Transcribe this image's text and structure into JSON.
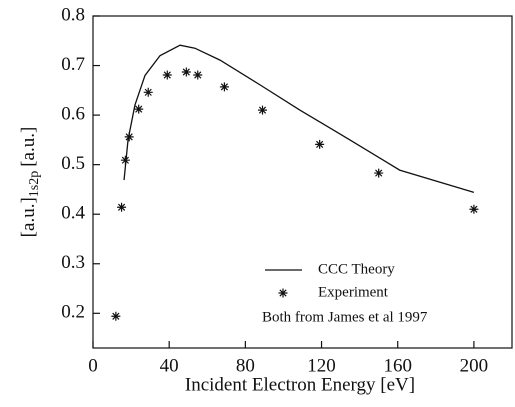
{
  "chart_data": {
    "type": "line",
    "xlabel": "Incident Electron Energy [eV]",
    "ylabel": {
      "main": "[a.u.]",
      "sub": "1s2p",
      "unit": "[a.u.]"
    },
    "annotation": "Both from James et al 1997",
    "xlim": [
      0,
      220
    ],
    "xticks": [
      0,
      40,
      80,
      120,
      160,
      200
    ],
    "ylim": [
      0.13,
      0.8
    ],
    "yticks": [
      0.2,
      0.3,
      0.4,
      0.5,
      0.6,
      0.7,
      0.8
    ],
    "series": [
      {
        "name": "CCC Theory",
        "style": "line",
        "color": "#111111",
        "x": [
          16.3,
          18.4,
          22,
          27.3,
          35.2,
          45.7,
          53.5,
          66.7,
          87.7,
          108.7,
          134.9,
          161,
          200
        ],
        "values": [
          0.469,
          0.55,
          0.62,
          0.68,
          0.72,
          0.741,
          0.735,
          0.711,
          0.661,
          0.61,
          0.55,
          0.489,
          0.444
        ]
      },
      {
        "name": "Experiment",
        "style": "star",
        "color": "#111111",
        "x": [
          12,
          15,
          17,
          19,
          24,
          29,
          39,
          49,
          55,
          69,
          89,
          119,
          150,
          200
        ],
        "values": [
          0.194,
          0.414,
          0.509,
          0.556,
          0.612,
          0.646,
          0.681,
          0.687,
          0.681,
          0.657,
          0.61,
          0.541,
          0.483,
          0.41
        ]
      }
    ]
  }
}
